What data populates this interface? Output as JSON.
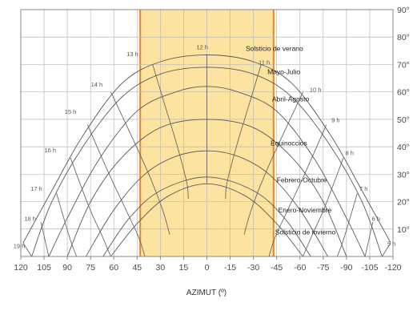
{
  "chart_data": {
    "type": "line",
    "title": "",
    "xlabel": "AZIMUT (º)",
    "ylabel": "",
    "xlim": [
      120,
      -120
    ],
    "ylim": [
      0,
      90
    ],
    "grid": true,
    "x_ticks": [
      120,
      105,
      90,
      75,
      60,
      45,
      30,
      15,
      0,
      -15,
      -30,
      -45,
      -60,
      -75,
      -90,
      -105,
      -120
    ],
    "x_tick_labels": [
      "120",
      "105",
      "90",
      "75",
      "60",
      "45",
      "30",
      "15",
      "0",
      "-15",
      "-30",
      "-45",
      "-60",
      "-75",
      "-90",
      "-105",
      "-120"
    ],
    "y_ticks": [
      10,
      20,
      30,
      40,
      50,
      60,
      70,
      80,
      90
    ],
    "y_tick_labels": [
      "10°",
      "20°",
      "30°",
      "40°",
      "50°",
      "60°",
      "70°",
      "80°",
      "90°"
    ],
    "highlight_band": {
      "from": 43,
      "to": -43,
      "fill": "#fde3a0",
      "edge": "#e8852a"
    },
    "series": [
      {
        "name": "Solsticio de verano",
        "points": [
          [
            118.5,
            5
          ],
          [
            100,
            24
          ],
          [
            80,
            44
          ],
          [
            55,
            63
          ],
          [
            30,
            71
          ],
          [
            0,
            73.5
          ],
          [
            -30,
            71
          ],
          [
            -55,
            63
          ],
          [
            -80,
            44
          ],
          [
            -100,
            24
          ],
          [
            -118.5,
            5
          ]
        ]
      },
      {
        "name": "Mayo-Julio",
        "points": [
          [
            113,
            0
          ],
          [
            100,
            20
          ],
          [
            80,
            40
          ],
          [
            55,
            58
          ],
          [
            30,
            66.5
          ],
          [
            0,
            69
          ],
          [
            -30,
            66.5
          ],
          [
            -55,
            58
          ],
          [
            -80,
            40
          ],
          [
            -100,
            20
          ],
          [
            -113,
            0
          ]
        ]
      },
      {
        "name": "Abril-Agosto",
        "points": [
          [
            102,
            0
          ],
          [
            90,
            14
          ],
          [
            70,
            35
          ],
          [
            45,
            53
          ],
          [
            20,
            60
          ],
          [
            0,
            62
          ],
          [
            -20,
            60
          ],
          [
            -45,
            53
          ],
          [
            -70,
            35
          ],
          [
            -90,
            14
          ],
          [
            -102,
            0
          ]
        ]
      },
      {
        "name": "Equinoccios",
        "points": [
          [
            90,
            0
          ],
          [
            75,
            20
          ],
          [
            55,
            36
          ],
          [
            30,
            47
          ],
          [
            0,
            50
          ],
          [
            -30,
            47
          ],
          [
            -55,
            36
          ],
          [
            -75,
            20
          ],
          [
            -90,
            0
          ]
        ]
      },
      {
        "name": "Febrero-Octubre",
        "points": [
          [
            78,
            0
          ],
          [
            60,
            17
          ],
          [
            40,
            30
          ],
          [
            20,
            36.5
          ],
          [
            0,
            38.5
          ],
          [
            -20,
            36.5
          ],
          [
            -40,
            30
          ],
          [
            -60,
            17
          ],
          [
            -78,
            0
          ]
        ]
      },
      {
        "name": "Enero-Noviembre",
        "points": [
          [
            67,
            0
          ],
          [
            50,
            14
          ],
          [
            30,
            24
          ],
          [
            0,
            29
          ],
          [
            -30,
            24
          ],
          [
            -50,
            14
          ],
          [
            -67,
            0
          ]
        ]
      },
      {
        "name": "Solsticio de invierno",
        "points": [
          [
            62,
            0
          ],
          [
            45,
            12
          ],
          [
            25,
            22
          ],
          [
            0,
            26.5
          ],
          [
            -25,
            22
          ],
          [
            -45,
            12
          ],
          [
            -62,
            0
          ]
        ]
      }
    ],
    "hour_lines": [
      {
        "label": "5 h",
        "points": [
          [
            -118.5,
            5
          ],
          [
            -113,
            0
          ]
        ]
      },
      {
        "label": "6 h",
        "points": [
          [
            -107,
            12.5
          ],
          [
            -102,
            0
          ]
        ]
      },
      {
        "label": "7 h",
        "points": [
          [
            -97,
            23
          ],
          [
            -88,
            6
          ],
          [
            -84,
            0
          ]
        ]
      },
      {
        "label": "8 h",
        "points": [
          [
            -88,
            36
          ],
          [
            -76,
            18
          ],
          [
            -68,
            8
          ],
          [
            -62,
            0
          ]
        ]
      },
      {
        "label": "9 h",
        "points": [
          [
            -77,
            48
          ],
          [
            -63,
            30
          ],
          [
            -53,
            18
          ],
          [
            -44,
            7
          ],
          [
            -40,
            0
          ]
        ]
      },
      {
        "label": "10 h",
        "points": [
          [
            -62,
            60
          ],
          [
            -47,
            42
          ],
          [
            -36,
            28
          ],
          [
            -28,
            16
          ],
          [
            -24,
            8
          ]
        ]
      },
      {
        "label": "11 h",
        "points": [
          [
            -35,
            70
          ],
          [
            -27,
            55
          ],
          [
            -19,
            40
          ],
          [
            -13,
            27
          ],
          [
            -12,
            21
          ]
        ]
      },
      {
        "label": "12 h",
        "points": [
          [
            0,
            73.5
          ],
          [
            0,
            26.5
          ]
        ]
      },
      {
        "label": "13 h",
        "points": [
          [
            35,
            70
          ],
          [
            27,
            55
          ],
          [
            19,
            40
          ],
          [
            13,
            27
          ],
          [
            12,
            21
          ]
        ]
      },
      {
        "label": "14 h",
        "points": [
          [
            62,
            60
          ],
          [
            47,
            42
          ],
          [
            36,
            28
          ],
          [
            28,
            16
          ],
          [
            24,
            8
          ]
        ]
      },
      {
        "label": "15 h",
        "points": [
          [
            77,
            48
          ],
          [
            63,
            30
          ],
          [
            53,
            18
          ],
          [
            44,
            7
          ],
          [
            40,
            0
          ]
        ]
      },
      {
        "label": "16 h",
        "points": [
          [
            88,
            36
          ],
          [
            76,
            18
          ],
          [
            68,
            8
          ],
          [
            62,
            0
          ]
        ]
      },
      {
        "label": "17 h",
        "points": [
          [
            97,
            23
          ],
          [
            88,
            6
          ],
          [
            84,
            0
          ]
        ]
      },
      {
        "label": "18 h",
        "points": [
          [
            107,
            12.5
          ],
          [
            102,
            0
          ]
        ]
      },
      {
        "label": "19 h",
        "points": [
          [
            118.5,
            5
          ],
          [
            113,
            0
          ]
        ]
      }
    ],
    "curve_labels": [
      {
        "text": "Solsticio de verano",
        "at": [
          -25,
          75
        ]
      },
      {
        "text": "Mayo-Julio",
        "at": [
          -39,
          66.5
        ]
      },
      {
        "text": "Abril-Agosto",
        "at": [
          -42,
          56.5
        ]
      },
      {
        "text": "Equinoccios",
        "at": [
          -41,
          40.5
        ]
      },
      {
        "text": "Febrero-Octubre",
        "at": [
          -45,
          27
        ]
      },
      {
        "text": "Enero-Noviembre",
        "at": [
          -46,
          16
        ]
      },
      {
        "text": "Solsticio de invierno",
        "at": [
          -44,
          8
        ]
      }
    ],
    "hour_label_positions": [
      {
        "text": "19 h",
        "at": [
          121,
          3
        ]
      },
      {
        "text": "18 h",
        "at": [
          114,
          13
        ]
      },
      {
        "text": "17 h",
        "at": [
          110,
          24
        ]
      },
      {
        "text": "16 h",
        "at": [
          101,
          38
        ]
      },
      {
        "text": "15 h",
        "at": [
          88,
          52
        ]
      },
      {
        "text": "14 h",
        "at": [
          71,
          62
        ]
      },
      {
        "text": "13 h",
        "at": [
          48,
          73
        ]
      },
      {
        "text": "12 h",
        "at": [
          3,
          75.5
        ]
      },
      {
        "text": "11 h",
        "at": [
          -37,
          70
        ]
      },
      {
        "text": "10 h",
        "at": [
          -70,
          60
        ]
      },
      {
        "text": "9 h",
        "at": [
          -83,
          49
        ]
      },
      {
        "text": "8 h",
        "at": [
          -92,
          37
        ]
      },
      {
        "text": "7 h",
        "at": [
          -101,
          24
        ]
      },
      {
        "text": "6 h",
        "at": [
          -109,
          13
        ]
      },
      {
        "text": "5 h",
        "at": [
          -119,
          4
        ]
      }
    ]
  }
}
